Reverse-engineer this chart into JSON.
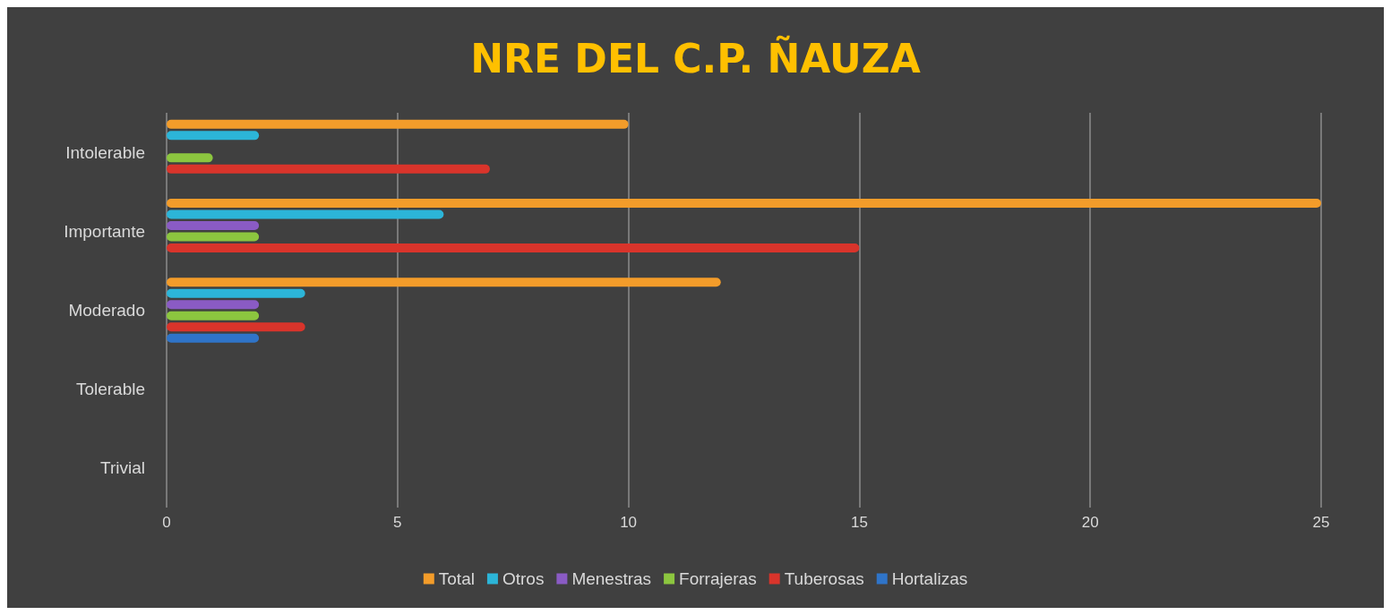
{
  "chart_data": {
    "type": "bar",
    "orientation": "horizontal",
    "title": "NRE DEL C.P. ÑAUZA",
    "categories": [
      "Intolerable",
      "Importante",
      "Moderado",
      "Tolerable",
      "Trivial"
    ],
    "series": [
      {
        "name": "Total",
        "color": "#f39c2a",
        "values": [
          10,
          25,
          12,
          0,
          0
        ]
      },
      {
        "name": "Otros",
        "color": "#2cb5d8",
        "values": [
          2,
          6,
          3,
          0,
          0
        ]
      },
      {
        "name": "Menestras",
        "color": "#8a5bc4",
        "values": [
          0,
          2,
          2,
          0,
          0
        ]
      },
      {
        "name": "Forrajeras",
        "color": "#8cc63f",
        "values": [
          1,
          2,
          2,
          0,
          0
        ]
      },
      {
        "name": "Tuberosas",
        "color": "#d9342b",
        "values": [
          7,
          15,
          3,
          0,
          0
        ]
      },
      {
        "name": "Hortalizas",
        "color": "#2f74c8",
        "values": [
          0,
          0,
          2,
          0,
          0
        ]
      }
    ],
    "xlim": [
      0,
      25
    ],
    "xticks": [
      0,
      5,
      10,
      15,
      20,
      25
    ],
    "grid": "x",
    "legend": "bottom"
  }
}
